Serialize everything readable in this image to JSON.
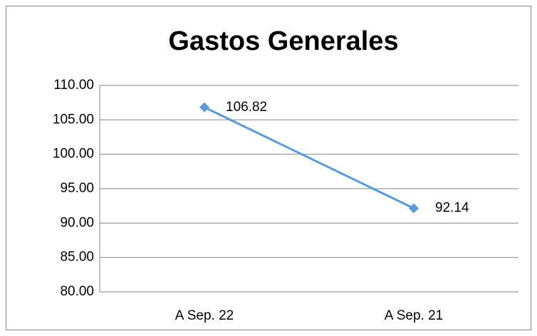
{
  "chart_data": {
    "type": "line",
    "title": "Gastos Generales",
    "categories": [
      "A Sep. 22",
      "A Sep. 21"
    ],
    "series": [
      {
        "name": "Gastos Generales",
        "color": "#5b9bd5",
        "values": [
          106.82,
          92.14
        ]
      }
    ],
    "ylim": [
      80,
      110
    ],
    "yticks": [
      {
        "value": 80,
        "label": "80.00"
      },
      {
        "value": 85,
        "label": "85.00"
      },
      {
        "value": 90,
        "label": "90.00"
      },
      {
        "value": 95,
        "label": "95.00"
      },
      {
        "value": 100,
        "label": "100.00"
      },
      {
        "value": 105,
        "label": "105.00"
      },
      {
        "value": 110,
        "label": "110.00"
      }
    ],
    "grid": true
  }
}
